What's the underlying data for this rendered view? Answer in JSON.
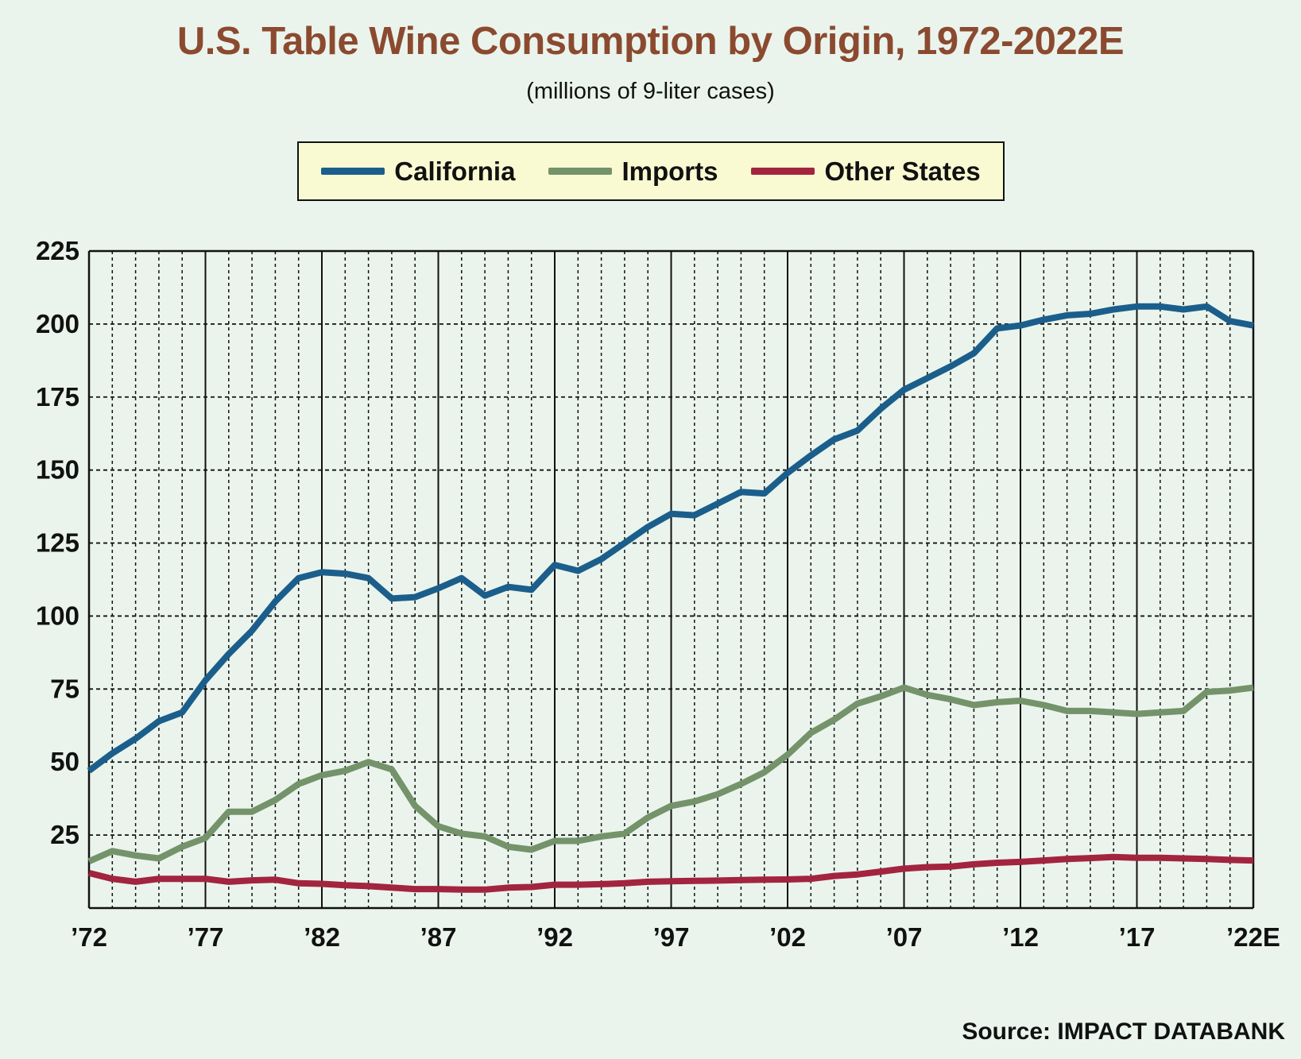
{
  "chart_data": {
    "type": "line",
    "title": "U.S. Table Wine Consumption by Origin, 1972-2022E",
    "subtitle": "(millions of 9-liter cases)",
    "source": "Source: IMPACT DATABANK",
    "ylim": [
      0,
      225
    ],
    "y_ticks": [
      25,
      50,
      75,
      100,
      125,
      150,
      175,
      200,
      225
    ],
    "xlim": [
      1972,
      2022
    ],
    "x_tick_values": [
      1972,
      1977,
      1982,
      1987,
      1992,
      1997,
      2002,
      2007,
      2012,
      2017,
      2022
    ],
    "x_tick_labels": [
      "’72",
      "’77",
      "’82",
      "’87",
      "’92",
      "’97",
      "’02",
      "’07",
      "’12",
      "’17",
      "’22E"
    ],
    "grid": true,
    "legend_position": "top-center",
    "x": [
      1972,
      1973,
      1974,
      1975,
      1976,
      1977,
      1978,
      1979,
      1980,
      1981,
      1982,
      1983,
      1984,
      1985,
      1986,
      1987,
      1988,
      1989,
      1990,
      1991,
      1992,
      1993,
      1994,
      1995,
      1996,
      1997,
      1998,
      1999,
      2000,
      2001,
      2002,
      2003,
      2004,
      2005,
      2006,
      2007,
      2008,
      2009,
      2010,
      2011,
      2012,
      2013,
      2014,
      2015,
      2016,
      2017,
      2018,
      2019,
      2020,
      2021,
      2022
    ],
    "series": [
      {
        "name": "California",
        "color": "#1b5e8c",
        "values": [
          47,
          53,
          58,
          64,
          67,
          78,
          87,
          95,
          105,
          113,
          115,
          114.5,
          113,
          106,
          106.5,
          109.5,
          113,
          107,
          110,
          109,
          117.5,
          115.5,
          119.5,
          125,
          130.5,
          135,
          134.5,
          138.5,
          142.5,
          142,
          149,
          155,
          160.5,
          163.5,
          171,
          177.5,
          181.5,
          185.5,
          190,
          198.5,
          199.5,
          201.5,
          203,
          203.5,
          205,
          206,
          206,
          205,
          206,
          201,
          199.5
        ]
      },
      {
        "name": "Imports",
        "color": "#74936a",
        "values": [
          16,
          19.5,
          18,
          17,
          21,
          24,
          33,
          33,
          37,
          42.5,
          45.5,
          47,
          50,
          47.5,
          35,
          28,
          25.5,
          24.5,
          21,
          20,
          23,
          23,
          24.5,
          25.5,
          31,
          35,
          36.5,
          39,
          42.5,
          46.5,
          52.5,
          60,
          64.5,
          70,
          72.5,
          75.5,
          73,
          71.5,
          69.5,
          70.5,
          71,
          69.5,
          67.5,
          67.5,
          67,
          66.5,
          67,
          67.5,
          74,
          74.5,
          75.5
        ]
      },
      {
        "name": "Other States",
        "color": "#a3243f",
        "values": [
          12,
          10,
          9,
          10,
          10,
          10,
          9,
          9.5,
          9.7,
          8.5,
          8.3,
          7.8,
          7.5,
          7,
          6.5,
          6.5,
          6.3,
          6.3,
          7,
          7.2,
          8,
          8,
          8.2,
          8.5,
          9,
          9.2,
          9.3,
          9.4,
          9.6,
          9.7,
          9.8,
          10,
          11,
          11.5,
          12.5,
          13.5,
          14,
          14.2,
          15,
          15.5,
          15.8,
          16.3,
          16.8,
          17.1,
          17.5,
          17.2,
          17.2,
          17,
          16.8,
          16.5,
          16.3
        ]
      }
    ]
  }
}
